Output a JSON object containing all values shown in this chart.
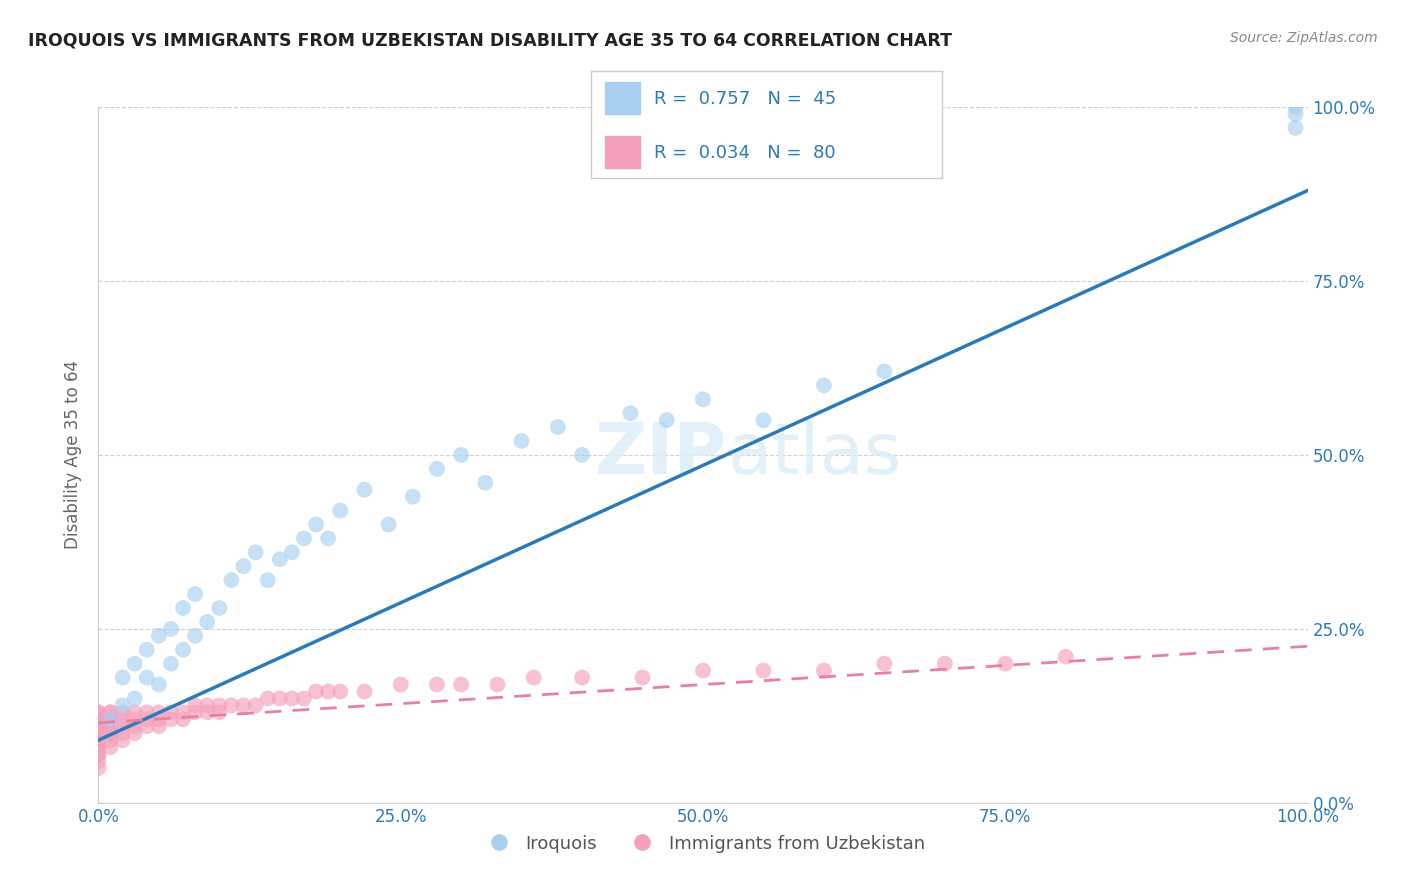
{
  "title": "IROQUOIS VS IMMIGRANTS FROM UZBEKISTAN DISABILITY AGE 35 TO 64 CORRELATION CHART",
  "source": "Source: ZipAtlas.com",
  "ylabel": "Disability Age 35 to 64",
  "background_color": "#ffffff",
  "legend": {
    "blue_label": "Iroquois",
    "pink_label": "Immigrants from Uzbekistan",
    "blue_R": "0.757",
    "blue_N": "45",
    "pink_R": "0.034",
    "pink_N": "80"
  },
  "iroquois_x": [
    0.01,
    0.02,
    0.02,
    0.03,
    0.03,
    0.04,
    0.04,
    0.05,
    0.05,
    0.06,
    0.06,
    0.07,
    0.07,
    0.08,
    0.08,
    0.09,
    0.1,
    0.11,
    0.12,
    0.13,
    0.14,
    0.15,
    0.16,
    0.17,
    0.18,
    0.19,
    0.2,
    0.22,
    0.24,
    0.26,
    0.28,
    0.3,
    0.32,
    0.35,
    0.38,
    0.4,
    0.44,
    0.47,
    0.5,
    0.55,
    0.6,
    0.65,
    0.99,
    0.99,
    0.99
  ],
  "iroquois_y": [
    0.12,
    0.14,
    0.18,
    0.15,
    0.2,
    0.18,
    0.22,
    0.17,
    0.24,
    0.2,
    0.25,
    0.22,
    0.28,
    0.24,
    0.3,
    0.26,
    0.28,
    0.32,
    0.34,
    0.36,
    0.32,
    0.35,
    0.36,
    0.38,
    0.4,
    0.38,
    0.42,
    0.45,
    0.4,
    0.44,
    0.48,
    0.5,
    0.46,
    0.52,
    0.54,
    0.5,
    0.56,
    0.55,
    0.58,
    0.55,
    0.6,
    0.62,
    0.97,
    0.99,
    1.0
  ],
  "uzbekistan_x": [
    0.0,
    0.0,
    0.0,
    0.0,
    0.0,
    0.0,
    0.0,
    0.0,
    0.0,
    0.0,
    0.0,
    0.0,
    0.0,
    0.0,
    0.0,
    0.0,
    0.0,
    0.0,
    0.0,
    0.0,
    0.01,
    0.01,
    0.01,
    0.01,
    0.01,
    0.01,
    0.01,
    0.01,
    0.01,
    0.01,
    0.02,
    0.02,
    0.02,
    0.02,
    0.02,
    0.03,
    0.03,
    0.03,
    0.03,
    0.04,
    0.04,
    0.04,
    0.05,
    0.05,
    0.05,
    0.06,
    0.06,
    0.07,
    0.07,
    0.08,
    0.08,
    0.09,
    0.09,
    0.1,
    0.1,
    0.11,
    0.12,
    0.13,
    0.14,
    0.15,
    0.16,
    0.17,
    0.18,
    0.19,
    0.2,
    0.22,
    0.25,
    0.28,
    0.3,
    0.33,
    0.36,
    0.4,
    0.45,
    0.5,
    0.55,
    0.6,
    0.65,
    0.7,
    0.75,
    0.8
  ],
  "uzbekistan_y": [
    0.05,
    0.06,
    0.07,
    0.07,
    0.08,
    0.08,
    0.08,
    0.09,
    0.09,
    0.1,
    0.1,
    0.1,
    0.11,
    0.11,
    0.11,
    0.12,
    0.12,
    0.12,
    0.13,
    0.13,
    0.08,
    0.09,
    0.1,
    0.1,
    0.11,
    0.11,
    0.12,
    0.12,
    0.13,
    0.13,
    0.09,
    0.1,
    0.11,
    0.12,
    0.13,
    0.1,
    0.11,
    0.12,
    0.13,
    0.11,
    0.12,
    0.13,
    0.11,
    0.12,
    0.13,
    0.12,
    0.13,
    0.12,
    0.13,
    0.13,
    0.14,
    0.13,
    0.14,
    0.13,
    0.14,
    0.14,
    0.14,
    0.14,
    0.15,
    0.15,
    0.15,
    0.15,
    0.16,
    0.16,
    0.16,
    0.16,
    0.17,
    0.17,
    0.17,
    0.17,
    0.18,
    0.18,
    0.18,
    0.19,
    0.19,
    0.19,
    0.2,
    0.2,
    0.2,
    0.21
  ],
  "blue_scatter_color": "#a8d0f0",
  "pink_scatter_color": "#f4a0bc",
  "blue_line_color": "#2b7bba",
  "pink_line_color": "#e8829a",
  "grid_color": "#cccccc",
  "ytick_labels_right": [
    "0.0%",
    "25.0%",
    "50.0%",
    "75.0%",
    "100.0%"
  ],
  "ytick_values": [
    0.0,
    0.25,
    0.5,
    0.75,
    1.0
  ],
  "xtick_labels": [
    "0.0%",
    "25.0%",
    "50.0%",
    "75.0%",
    "100.0%"
  ],
  "xtick_values": [
    0.0,
    0.25,
    0.5,
    0.75,
    1.0
  ],
  "blue_trend_x0": 0.0,
  "blue_trend_y0": 0.09,
  "blue_trend_x1": 1.0,
  "blue_trend_y1": 0.88,
  "pink_trend_x0": 0.0,
  "pink_trend_y0": 0.115,
  "pink_trend_x1": 1.0,
  "pink_trend_y1": 0.225
}
